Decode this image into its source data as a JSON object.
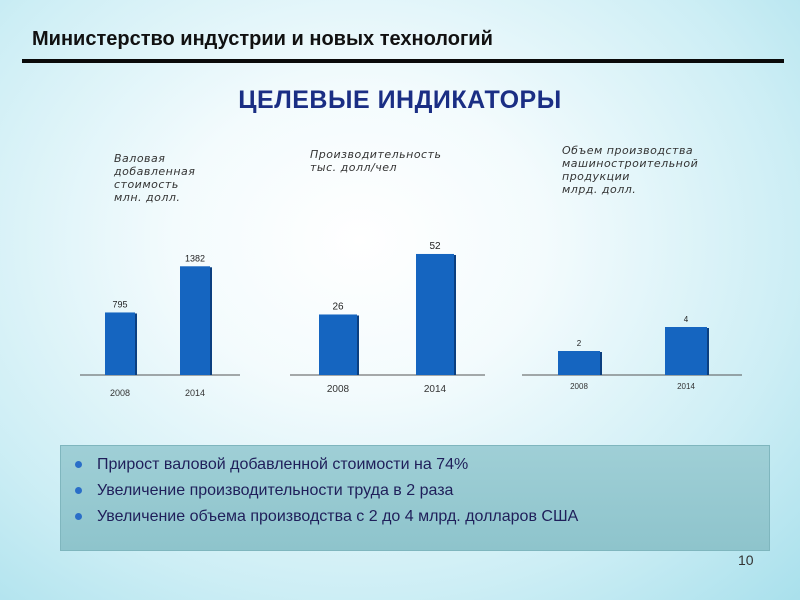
{
  "header": {
    "title": "Министерство индустрии и новых технологий"
  },
  "main_title": "ЦЕЛЕВЫЕ ИНДИКАТОРЫ",
  "colors": {
    "bar": "#1565c0",
    "bar_shadow": "#0b3f80",
    "title": "#1a2e84"
  },
  "chart_data": [
    {
      "type": "bar",
      "title": "Валовая\nдобавленная\nстоимость\nмлн. долл.",
      "categories": [
        "2008",
        "2014"
      ],
      "values": [
        795,
        1382
      ],
      "value_labels": [
        "795",
        "1382"
      ],
      "ylim": [
        0,
        1500
      ]
    },
    {
      "type": "bar",
      "title": "Производительность\nтыс. долл/чел",
      "categories": [
        "2008",
        "2014"
      ],
      "values": [
        26,
        52
      ],
      "value_labels": [
        "26",
        "52"
      ],
      "ylim": [
        0,
        58
      ]
    },
    {
      "type": "bar",
      "title": "Объем производства\nмашиностроительной\nпродукции\nмлрд. долл.",
      "categories": [
        "2008",
        "2014"
      ],
      "values": [
        2,
        4
      ],
      "value_labels": [
        "2",
        "4"
      ],
      "ylim": [
        0,
        6.5
      ]
    }
  ],
  "bullets": [
    "Прирост валовой добавленной стоимости на 74%",
    "Увеличение производительности труда в 2 раза",
    "Увеличение объема производства с 2 до 4 млрд. долларов США"
  ],
  "page_number": "10"
}
